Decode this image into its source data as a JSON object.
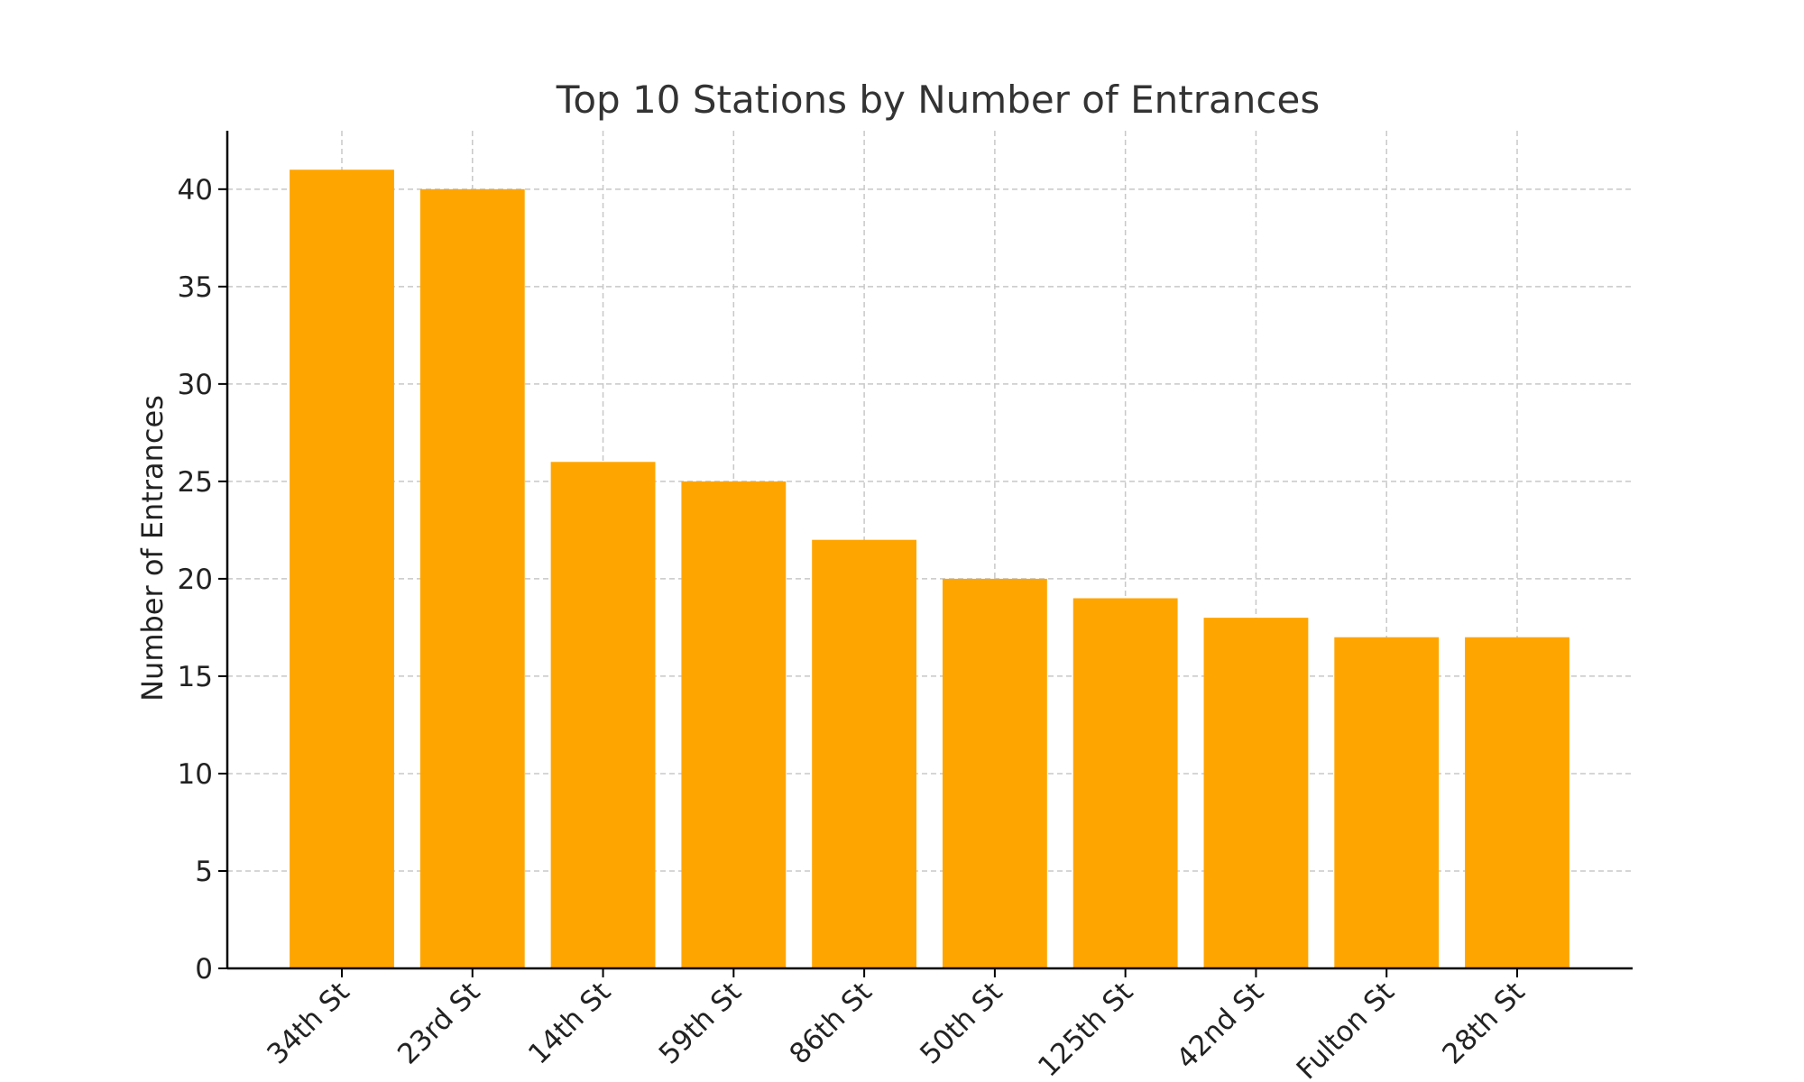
{
  "chart_data": {
    "type": "bar",
    "title": "Top 10 Stations by Number of Entrances",
    "xlabel": "",
    "ylabel": "Number of Entrances",
    "categories": [
      "34th St",
      "23rd St",
      "14th St",
      "59th St",
      "86th St",
      "50th St",
      "125th St",
      "42nd St",
      "Fulton St",
      "28th St"
    ],
    "values": [
      41,
      40,
      26,
      25,
      22,
      20,
      19,
      18,
      17,
      17
    ],
    "ylim": [
      0,
      43
    ],
    "yticks": [
      0,
      5,
      10,
      15,
      20,
      25,
      30,
      35,
      40
    ],
    "grid": true,
    "bar_color": "#FFA500",
    "legend": "none"
  }
}
